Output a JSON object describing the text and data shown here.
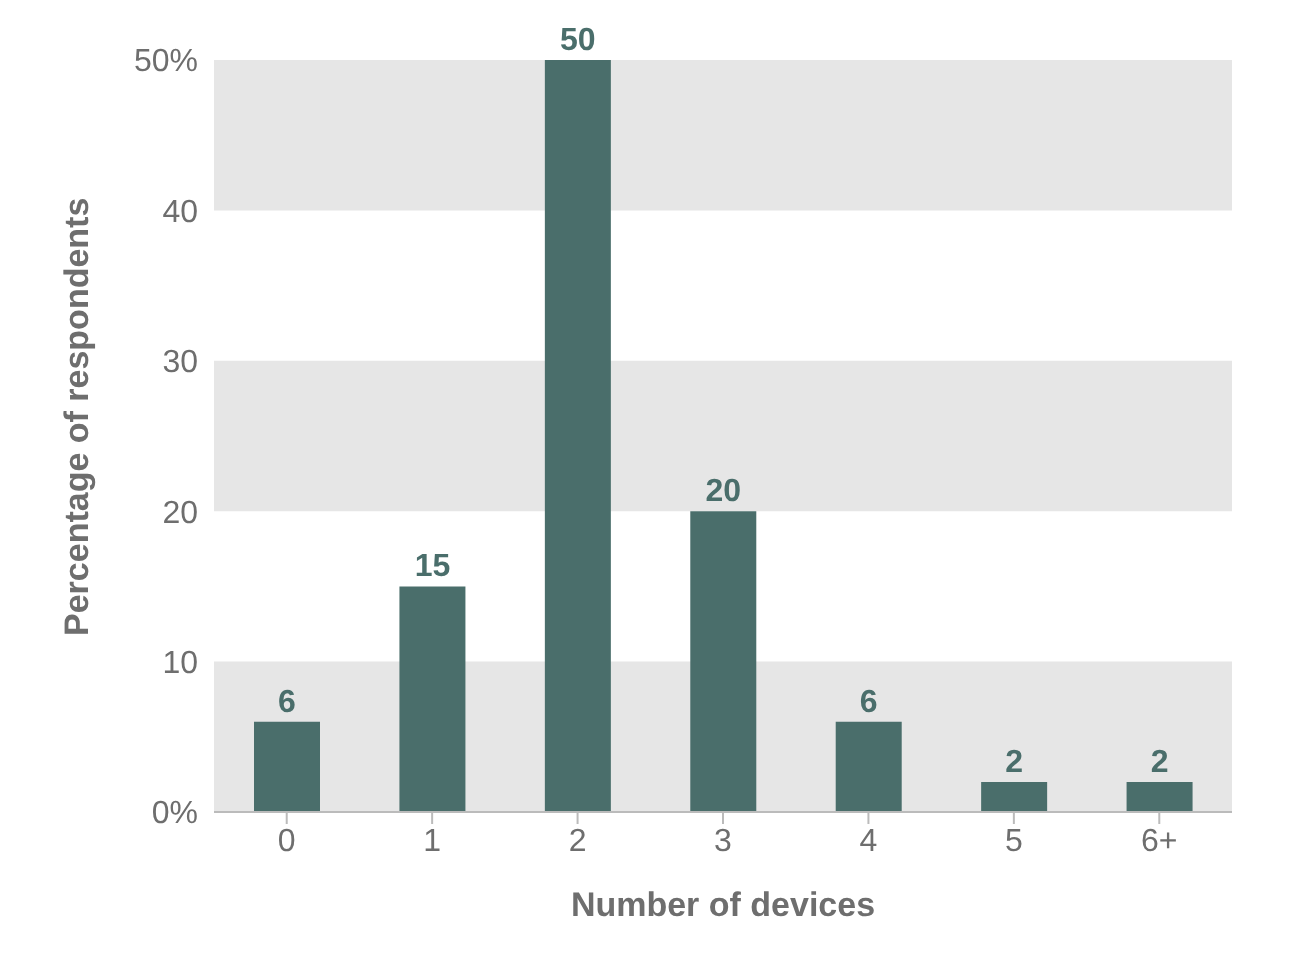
{
  "chart_data": {
    "type": "bar",
    "xlabel": "Number of devices",
    "ylabel": "Percentage of respondents",
    "categories": [
      "0",
      "1",
      "2",
      "3",
      "4",
      "5",
      "6+"
    ],
    "values": [
      6,
      15,
      50,
      20,
      6,
      2,
      2
    ],
    "color": "#4a6e6b",
    "ylim": [
      0,
      50
    ],
    "yticks": [
      {
        "value": 0,
        "label": "0%"
      },
      10,
      20,
      30,
      40,
      {
        "value": 50,
        "label": "50%"
      }
    ],
    "bands": [
      {
        "axis": "y",
        "from": 0,
        "to": 10,
        "color": "#e6e6e6"
      },
      {
        "axis": "y",
        "from": 20,
        "to": 30,
        "color": "#e6e6e6"
      },
      {
        "axis": "y",
        "from": 40,
        "to": 50,
        "color": "#e6e6e6"
      }
    ],
    "data_labels": true
  }
}
